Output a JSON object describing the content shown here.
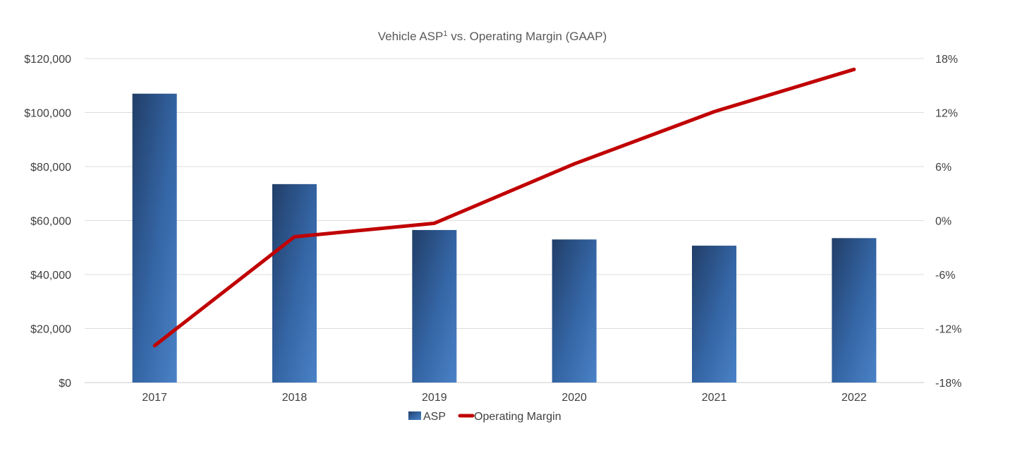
{
  "chart_data": {
    "type": "bar",
    "title_main": "Vehicle ASP",
    "title_sup": "1",
    "title_rest": " vs. Operating Margin (GAAP)",
    "categories": [
      "2017",
      "2018",
      "2019",
      "2020",
      "2021",
      "2022"
    ],
    "series": [
      {
        "name": "ASP",
        "type": "bar",
        "axis": "left",
        "values": [
          107000,
          73500,
          56500,
          53000,
          50700,
          53500
        ],
        "color": "#3567a6"
      },
      {
        "name": "Operating Margin",
        "type": "line",
        "axis": "right",
        "values": [
          -13.9,
          -1.8,
          -0.3,
          6.3,
          12.1,
          16.8
        ],
        "color": "#c00000"
      }
    ],
    "y_left": {
      "ylim": [
        0,
        120000
      ],
      "ticks": [
        0,
        20000,
        40000,
        60000,
        80000,
        100000,
        120000
      ],
      "tick_labels": [
        "$0",
        "$20,000",
        "$40,000",
        "$60,000",
        "$80,000",
        "$100,000",
        "$120,000"
      ]
    },
    "y_right": {
      "ylim": [
        -18,
        18
      ],
      "ticks": [
        -18,
        -12,
        -6,
        0,
        6,
        12,
        18
      ],
      "tick_labels": [
        "-18%",
        "-12%",
        "-6%",
        "0%",
        "6%",
        "12%",
        "18%"
      ]
    },
    "grid": true,
    "legend_position": "bottom"
  }
}
